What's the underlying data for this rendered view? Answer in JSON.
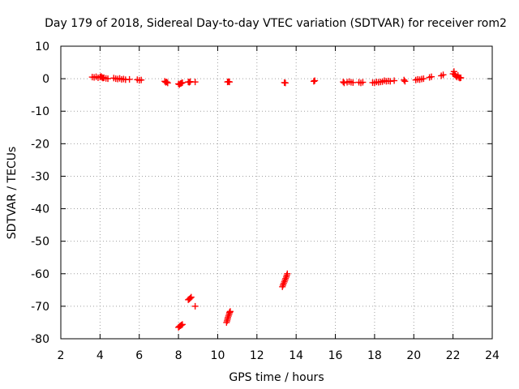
{
  "chart_data": {
    "type": "scatter",
    "title": "Day 179 of 2018, Sidereal Day-to-day VTEC variation (SDTVAR) for receiver rom2",
    "xlabel": "GPS time / hours",
    "ylabel": "SDTVAR / TECUs",
    "xlim": [
      2,
      24
    ],
    "ylim": [
      -80,
      10
    ],
    "xticks": [
      2,
      4,
      6,
      8,
      10,
      12,
      14,
      16,
      18,
      20,
      22,
      24
    ],
    "yticks": [
      10,
      0,
      -10,
      -20,
      -30,
      -40,
      -50,
      -60,
      -70,
      -80
    ],
    "grid": true,
    "marker": "plus",
    "color": "#ff0000",
    "series": [
      {
        "name": "SDTVAR",
        "points": [
          [
            3.6,
            0.5
          ],
          [
            3.7,
            0.4
          ],
          [
            3.8,
            0.6
          ],
          [
            3.9,
            0.3
          ],
          [
            4.0,
            0.5
          ],
          [
            4.05,
            0.7
          ],
          [
            4.1,
            0.4
          ],
          [
            4.15,
            0.2
          ],
          [
            4.2,
            0.3
          ],
          [
            4.3,
            0.1
          ],
          [
            4.4,
            0.0
          ],
          [
            4.7,
            0.2
          ],
          [
            4.8,
            0.0
          ],
          [
            4.9,
            -0.1
          ],
          [
            5.0,
            0.1
          ],
          [
            5.1,
            -0.2
          ],
          [
            5.2,
            -0.1
          ],
          [
            5.3,
            -0.3
          ],
          [
            5.5,
            -0.2
          ],
          [
            5.9,
            -0.3
          ],
          [
            6.0,
            -0.5
          ],
          [
            6.1,
            -0.4
          ],
          [
            7.3,
            -0.8
          ],
          [
            7.35,
            -1.1
          ],
          [
            7.4,
            -1.0
          ],
          [
            7.45,
            -1.3
          ],
          [
            8.0,
            -1.6
          ],
          [
            8.05,
            -1.8
          ],
          [
            8.1,
            -1.5
          ],
          [
            8.15,
            -1.4
          ],
          [
            8.2,
            -1.2
          ],
          [
            8.5,
            -1.0
          ],
          [
            8.55,
            -1.1
          ],
          [
            8.6,
            -0.9
          ],
          [
            8.85,
            -1.0
          ],
          [
            10.5,
            -1.0
          ],
          [
            10.55,
            -0.9
          ],
          [
            10.6,
            -1.0
          ],
          [
            13.4,
            -1.2
          ],
          [
            13.45,
            -1.3
          ],
          [
            14.9,
            -0.8
          ],
          [
            14.95,
            -0.6
          ],
          [
            16.4,
            -1.0
          ],
          [
            16.45,
            -1.3
          ],
          [
            16.6,
            -1.1
          ],
          [
            16.7,
            -0.9
          ],
          [
            16.8,
            -1.1
          ],
          [
            16.9,
            -1.2
          ],
          [
            17.2,
            -1.1
          ],
          [
            17.3,
            -1.3
          ],
          [
            17.4,
            -1.1
          ],
          [
            17.9,
            -1.2
          ],
          [
            18.0,
            -1.3
          ],
          [
            18.1,
            -1.0
          ],
          [
            18.2,
            -1.1
          ],
          [
            18.3,
            -1.0
          ],
          [
            18.4,
            -0.9
          ],
          [
            18.5,
            -0.6
          ],
          [
            18.6,
            -0.8
          ],
          [
            18.7,
            -0.7
          ],
          [
            18.8,
            -0.8
          ],
          [
            19.0,
            -0.6
          ],
          [
            19.5,
            -0.4
          ],
          [
            19.55,
            -0.8
          ],
          [
            20.1,
            -0.4
          ],
          [
            20.2,
            -0.2
          ],
          [
            20.3,
            -0.3
          ],
          [
            20.4,
            -0.1
          ],
          [
            20.5,
            0.0
          ],
          [
            20.8,
            0.4
          ],
          [
            20.9,
            0.6
          ],
          [
            21.4,
            0.9
          ],
          [
            21.5,
            1.2
          ],
          [
            22.0,
            1.5
          ],
          [
            22.05,
            2.2
          ],
          [
            22.1,
            1.2
          ],
          [
            22.15,
            0.8
          ],
          [
            22.2,
            0.5
          ],
          [
            22.25,
            1.0
          ],
          [
            22.3,
            0.4
          ],
          [
            22.35,
            0.2
          ],
          [
            22.4,
            0.3
          ],
          [
            8.0,
            -76.5
          ],
          [
            8.05,
            -76.2
          ],
          [
            8.1,
            -76.0
          ],
          [
            8.15,
            -75.8
          ],
          [
            8.2,
            -75.6
          ],
          [
            8.5,
            -68.0
          ],
          [
            8.55,
            -67.8
          ],
          [
            8.6,
            -67.5
          ],
          [
            8.65,
            -67.2
          ],
          [
            8.85,
            -70.0
          ],
          [
            10.45,
            -75.0
          ],
          [
            10.48,
            -74.5
          ],
          [
            10.5,
            -74.0
          ],
          [
            10.52,
            -73.5
          ],
          [
            10.55,
            -73.0
          ],
          [
            10.58,
            -72.5
          ],
          [
            10.6,
            -72.0
          ],
          [
            10.62,
            -71.8
          ],
          [
            10.64,
            -71.6
          ],
          [
            13.3,
            -64.0
          ],
          [
            13.33,
            -63.5
          ],
          [
            13.36,
            -63.0
          ],
          [
            13.4,
            -62.5
          ],
          [
            13.43,
            -62.0
          ],
          [
            13.46,
            -61.5
          ],
          [
            13.5,
            -61.0
          ],
          [
            13.52,
            -60.5
          ],
          [
            13.55,
            -60.0
          ]
        ]
      }
    ]
  }
}
